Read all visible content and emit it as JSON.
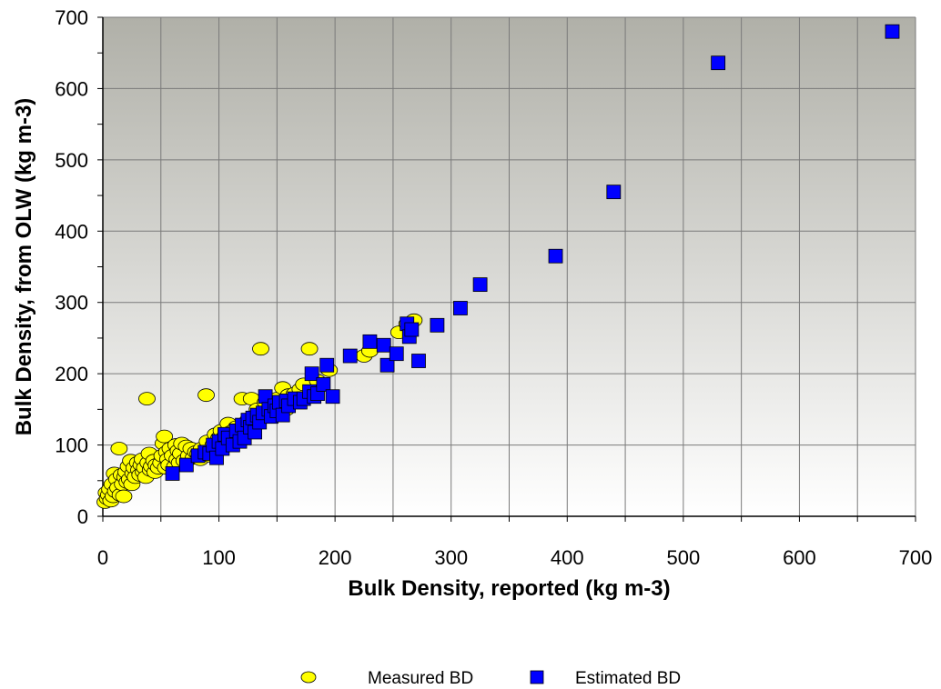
{
  "chart_data": {
    "type": "scatter",
    "xlabel": "Bulk Density, reported (kg m-3)",
    "ylabel": "Bulk Density, from OLW (kg m-3)",
    "xlim": [
      0,
      700
    ],
    "ylim": [
      0,
      700
    ],
    "xticks": [
      0,
      100,
      200,
      300,
      400,
      500,
      600,
      700
    ],
    "yticks": [
      0,
      100,
      200,
      300,
      400,
      500,
      600,
      700
    ],
    "grid": true,
    "legend_position": "bottom-center",
    "colors": {
      "plot_bg_top": "#b0b0a8",
      "plot_bg_bottom": "#ffffff",
      "measured_fill": "#ffff00",
      "estimated_fill": "#0000ff"
    },
    "series": [
      {
        "name": "Measured BD",
        "marker": "ellipse",
        "points": [
          [
            2,
            20
          ],
          [
            3,
            33
          ],
          [
            4,
            25
          ],
          [
            5,
            30
          ],
          [
            6,
            38
          ],
          [
            7,
            22
          ],
          [
            8,
            45
          ],
          [
            9,
            28
          ],
          [
            10,
            60
          ],
          [
            11,
            35
          ],
          [
            12,
            52
          ],
          [
            13,
            40
          ],
          [
            14,
            95
          ],
          [
            15,
            30
          ],
          [
            16,
            58
          ],
          [
            17,
            45
          ],
          [
            18,
            28
          ],
          [
            19,
            55
          ],
          [
            20,
            62
          ],
          [
            21,
            48
          ],
          [
            22,
            70
          ],
          [
            23,
            52
          ],
          [
            24,
            78
          ],
          [
            25,
            45
          ],
          [
            26,
            60
          ],
          [
            27,
            68
          ],
          [
            28,
            55
          ],
          [
            30,
            75
          ],
          [
            31,
            65
          ],
          [
            32,
            58
          ],
          [
            33,
            72
          ],
          [
            34,
            80
          ],
          [
            35,
            62
          ],
          [
            36,
            68
          ],
          [
            37,
            55
          ],
          [
            38,
            165
          ],
          [
            39,
            75
          ],
          [
            40,
            88
          ],
          [
            41,
            65
          ],
          [
            42,
            70
          ],
          [
            44,
            78
          ],
          [
            45,
            62
          ],
          [
            46,
            72
          ],
          [
            48,
            68
          ],
          [
            50,
            75
          ],
          [
            51,
            85
          ],
          [
            52,
            102
          ],
          [
            53,
            112
          ],
          [
            54,
            68
          ],
          [
            55,
            90
          ],
          [
            56,
            80
          ],
          [
            57,
            72
          ],
          [
            58,
            95
          ],
          [
            60,
            85
          ],
          [
            62,
            70
          ],
          [
            63,
            100
          ],
          [
            64,
            80
          ],
          [
            65,
            92
          ],
          [
            66,
            75
          ],
          [
            67,
            88
          ],
          [
            68,
            102
          ],
          [
            70,
            78
          ],
          [
            72,
            98
          ],
          [
            74,
            85
          ],
          [
            76,
            95
          ],
          [
            78,
            82
          ],
          [
            80,
            90
          ],
          [
            82,
            88
          ],
          [
            84,
            80
          ],
          [
            85,
            95
          ],
          [
            88,
            90
          ],
          [
            89,
            170
          ],
          [
            90,
            105
          ],
          [
            92,
            85
          ],
          [
            95,
            100
          ],
          [
            97,
            115
          ],
          [
            100,
            110
          ],
          [
            102,
            120
          ],
          [
            105,
            112
          ],
          [
            108,
            130
          ],
          [
            110,
            118
          ],
          [
            112,
            105
          ],
          [
            115,
            125
          ],
          [
            118,
            120
          ],
          [
            120,
            165
          ],
          [
            125,
            135
          ],
          [
            128,
            165
          ],
          [
            130,
            140
          ],
          [
            133,
            150
          ],
          [
            136,
            235
          ],
          [
            140,
            160
          ],
          [
            145,
            155
          ],
          [
            150,
            165
          ],
          [
            155,
            180
          ],
          [
            158,
            150
          ],
          [
            160,
            170
          ],
          [
            165,
            172
          ],
          [
            170,
            178
          ],
          [
            173,
            185
          ],
          [
            178,
            235
          ],
          [
            180,
            170
          ],
          [
            185,
            190
          ],
          [
            195,
            205
          ],
          [
            225,
            225
          ],
          [
            230,
            232
          ],
          [
            255,
            258
          ],
          [
            262,
            270
          ],
          [
            268,
            275
          ]
        ]
      },
      {
        "name": "Estimated BD",
        "marker": "square",
        "points": [
          [
            60,
            60
          ],
          [
            72,
            72
          ],
          [
            82,
            85
          ],
          [
            88,
            90
          ],
          [
            92,
            88
          ],
          [
            95,
            100
          ],
          [
            98,
            82
          ],
          [
            100,
            105
          ],
          [
            103,
            95
          ],
          [
            105,
            115
          ],
          [
            108,
            110
          ],
          [
            112,
            100
          ],
          [
            115,
            120
          ],
          [
            118,
            105
          ],
          [
            120,
            128
          ],
          [
            122,
            110
          ],
          [
            125,
            135
          ],
          [
            127,
            125
          ],
          [
            129,
            138
          ],
          [
            131,
            118
          ],
          [
            133,
            142
          ],
          [
            135,
            132
          ],
          [
            138,
            145
          ],
          [
            140,
            168
          ],
          [
            143,
            150
          ],
          [
            145,
            140
          ],
          [
            148,
            155
          ],
          [
            150,
            148
          ],
          [
            152,
            160
          ],
          [
            155,
            142
          ],
          [
            158,
            162
          ],
          [
            160,
            155
          ],
          [
            165,
            165
          ],
          [
            170,
            160
          ],
          [
            173,
            165
          ],
          [
            178,
            175
          ],
          [
            180,
            200
          ],
          [
            182,
            168
          ],
          [
            185,
            172
          ],
          [
            190,
            185
          ],
          [
            193,
            212
          ],
          [
            198,
            168
          ],
          [
            213,
            225
          ],
          [
            230,
            245
          ],
          [
            242,
            240
          ],
          [
            245,
            212
          ],
          [
            253,
            228
          ],
          [
            262,
            270
          ],
          [
            264,
            252
          ],
          [
            266,
            262
          ],
          [
            272,
            218
          ],
          [
            288,
            268
          ],
          [
            308,
            292
          ],
          [
            325,
            325
          ],
          [
            390,
            365
          ],
          [
            440,
            455
          ],
          [
            530,
            636
          ],
          [
            680,
            680
          ]
        ]
      }
    ]
  }
}
